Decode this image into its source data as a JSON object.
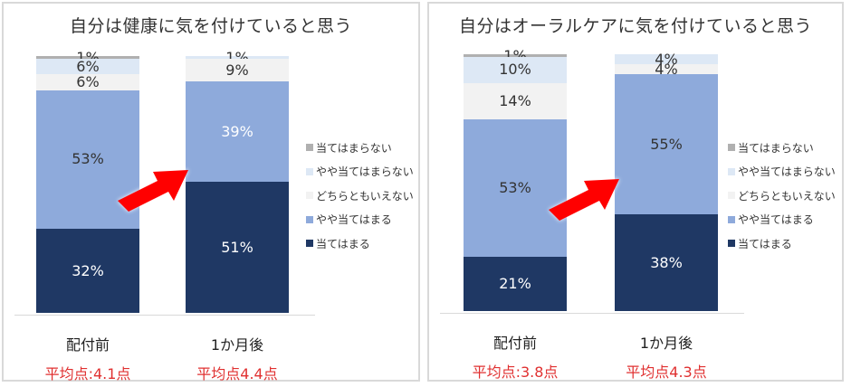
{
  "chart_data": [
    {
      "type": "bar",
      "stacked": true,
      "title": "自分は健康に気を付けていると思う",
      "categories": [
        "配付前",
        "1か月後"
      ],
      "series": [
        {
          "name": "当てはまる",
          "color": "#1f3864",
          "values": [
            32,
            51
          ]
        },
        {
          "name": "やや当てはまる",
          "color": "#8eaadb",
          "values": [
            53,
            39
          ]
        },
        {
          "name": "どちらともいえない",
          "color": "#f2f2f2",
          "values": [
            6,
            9
          ]
        },
        {
          "name": "やや当てはまらない",
          "color": "#dde8f5",
          "values": [
            6,
            1
          ]
        },
        {
          "name": "当てはまらない",
          "color": "#b0b0b0",
          "values": [
            1,
            0
          ]
        }
      ],
      "averages": [
        "平均点:4.1点",
        "平均点4.4点"
      ],
      "xlabel": "",
      "ylabel": "",
      "ylim": [
        0,
        100
      ],
      "legend_position": "right",
      "annotation": "red arrow pointing from 配付前 to 1か月後"
    },
    {
      "type": "bar",
      "stacked": true,
      "title": "自分はオーラルケアに気を付けていると思う",
      "categories": [
        "配付前",
        "1か月後"
      ],
      "series": [
        {
          "name": "当てはまる",
          "color": "#1f3864",
          "values": [
            21,
            38
          ]
        },
        {
          "name": "やや当てはまる",
          "color": "#8eaadb",
          "values": [
            53,
            55
          ]
        },
        {
          "name": "どちらともいえない",
          "color": "#f2f2f2",
          "values": [
            14,
            4
          ]
        },
        {
          "name": "やや当てはまらない",
          "color": "#dde8f5",
          "values": [
            10,
            4
          ]
        },
        {
          "name": "当てはまらない",
          "color": "#b0b0b0",
          "values": [
            1,
            0
          ]
        }
      ],
      "averages": [
        "平均点:3.8点",
        "平均点4.3点"
      ],
      "xlabel": "",
      "ylabel": "",
      "ylim": [
        0,
        100
      ],
      "legend_position": "right",
      "annotation": "red arrow pointing from 配付前 to 1か月後"
    }
  ],
  "left": {
    "title": "自分は健康に気を付けていると思う",
    "bars": [
      {
        "category": "配付前",
        "average": "平均点:4.1点",
        "segments": [
          {
            "label": "1%",
            "pct": 1,
            "color": "#b0b0b0",
            "text": "#333"
          },
          {
            "label": "6%",
            "pct": 6,
            "color": "#dde8f5",
            "text": "#333"
          },
          {
            "label": "6%",
            "pct": 6,
            "color": "#f2f2f2",
            "text": "#333"
          },
          {
            "label": "53%",
            "pct": 53,
            "color": "#8eaadb",
            "text": "#333"
          },
          {
            "label": "32%",
            "pct": 32,
            "color": "#1f3864",
            "text": "#fff"
          }
        ]
      },
      {
        "category": "1か月後",
        "average": "平均点4.4点",
        "segments": [
          {
            "label": "1%",
            "pct": 1,
            "color": "#dde8f5",
            "text": "#333"
          },
          {
            "label": "9%",
            "pct": 9,
            "color": "#f2f2f2",
            "text": "#333"
          },
          {
            "label": "39%",
            "pct": 39,
            "color": "#8eaadb",
            "text": "#fff"
          },
          {
            "label": "51%",
            "pct": 51,
            "color": "#1f3864",
            "text": "#fff"
          }
        ]
      }
    ]
  },
  "right": {
    "title": "自分はオーラルケアに気を付けていると思う",
    "bars": [
      {
        "category": "配付前",
        "average": "平均点:3.8点",
        "segments": [
          {
            "label": "1%",
            "pct": 1,
            "color": "#b0b0b0",
            "text": "#333"
          },
          {
            "label": "10%",
            "pct": 10,
            "color": "#dde8f5",
            "text": "#333"
          },
          {
            "label": "14%",
            "pct": 14,
            "color": "#f2f2f2",
            "text": "#333"
          },
          {
            "label": "53%",
            "pct": 53,
            "color": "#8eaadb",
            "text": "#333"
          },
          {
            "label": "21%",
            "pct": 21,
            "color": "#1f3864",
            "text": "#fff"
          }
        ]
      },
      {
        "category": "1か月後",
        "average": "平均点4.3点",
        "segments": [
          {
            "label": "4%",
            "pct": 4,
            "color": "#dde8f5",
            "text": "#333"
          },
          {
            "label": "4%",
            "pct": 4,
            "color": "#f2f2f2",
            "text": "#333"
          },
          {
            "label": "55%",
            "pct": 55,
            "color": "#8eaadb",
            "text": "#333"
          },
          {
            "label": "38%",
            "pct": 38,
            "color": "#1f3864",
            "text": "#fff"
          }
        ]
      }
    ]
  },
  "legend": [
    {
      "label": "当てはまらない",
      "color": "#b0b0b0"
    },
    {
      "label": "やや当てはまらない",
      "color": "#dde8f5"
    },
    {
      "label": "どちらともいえない",
      "color": "#f2f2f2"
    },
    {
      "label": "やや当てはまる",
      "color": "#8eaadb"
    },
    {
      "label": "当てはまる",
      "color": "#1f3864"
    }
  ]
}
